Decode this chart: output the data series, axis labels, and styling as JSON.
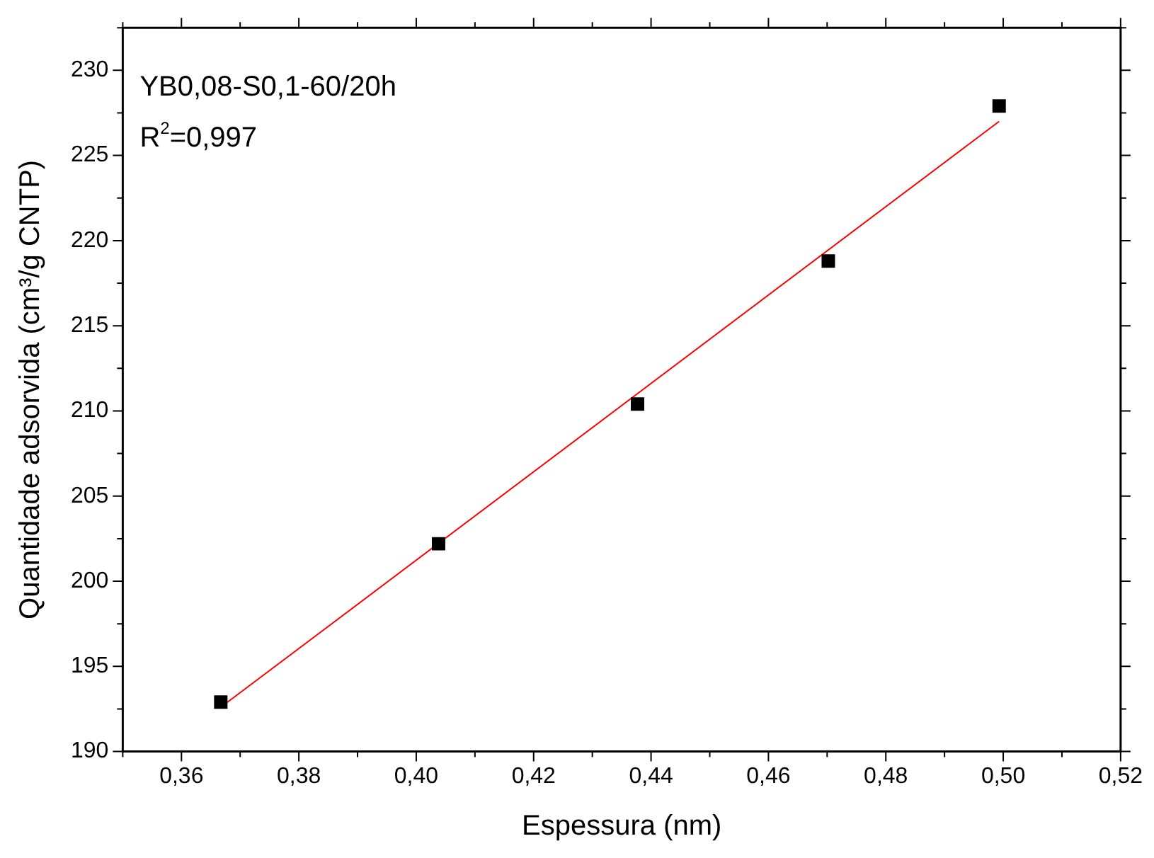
{
  "chart_data": {
    "type": "scatter",
    "xlabel": "Espessura (nm)",
    "ylabel": "Quantidade adsorvida (cm³/g CNTP)",
    "annotations": [
      "YB0,08-S0,1-60/20h",
      "R$^{2}$=0,997"
    ],
    "x": [
      0.3667,
      0.4038,
      0.4377,
      0.4702,
      0.4993
    ],
    "series": [
      {
        "color": "#000000",
        "marker": "square",
        "values": [
          192.9,
          202.2,
          210.4,
          218.8,
          227.9
        ]
      },
      {
        "type": "line",
        "color": "#ff0000",
        "marker": "none",
        "line_style": "solid",
        "x": [
          0.3667,
          0.4993
        ],
        "values": [
          192.6,
          227.0
        ]
      }
    ],
    "xlim": [
      0.35,
      0.52
    ],
    "xticks": [
      {
        "value": 0.35,
        "label": null
      },
      {
        "value": 0.36,
        "label": "0,36"
      },
      {
        "value": 0.37,
        "label": null
      },
      {
        "value": 0.38,
        "label": "0,38"
      },
      {
        "value": 0.39,
        "label": null
      },
      {
        "value": 0.4,
        "label": "0,40"
      },
      {
        "value": 0.41,
        "label": null
      },
      {
        "value": 0.42,
        "label": "0,42"
      },
      {
        "value": 0.43,
        "label": null
      },
      {
        "value": 0.44,
        "label": "0,44"
      },
      {
        "value": 0.45,
        "label": null
      },
      {
        "value": 0.46,
        "label": "0,46"
      },
      {
        "value": 0.47,
        "label": null
      },
      {
        "value": 0.48,
        "label": "0,48"
      },
      {
        "value": 0.49,
        "label": null
      },
      {
        "value": 0.5,
        "label": "0,50"
      },
      {
        "value": 0.51,
        "label": null
      },
      {
        "value": 0.52,
        "label": "0,52"
      }
    ],
    "ylim": [
      190,
      232.5
    ],
    "yticks": [
      190,
      {
        "value": 192.5,
        "label": null
      },
      195,
      {
        "value": 197.5,
        "label": null
      },
      200,
      {
        "value": 202.5,
        "label": null
      },
      205,
      {
        "value": 207.5,
        "label": null
      },
      210,
      {
        "value": 212.5,
        "label": null
      },
      215,
      {
        "value": 217.5,
        "label": null
      },
      220,
      {
        "value": 222.5,
        "label": null
      },
      225,
      {
        "value": 227.5,
        "label": null
      },
      230,
      {
        "value": 232.5,
        "label": null
      }
    ],
    "grid": false,
    "legend": false
  }
}
